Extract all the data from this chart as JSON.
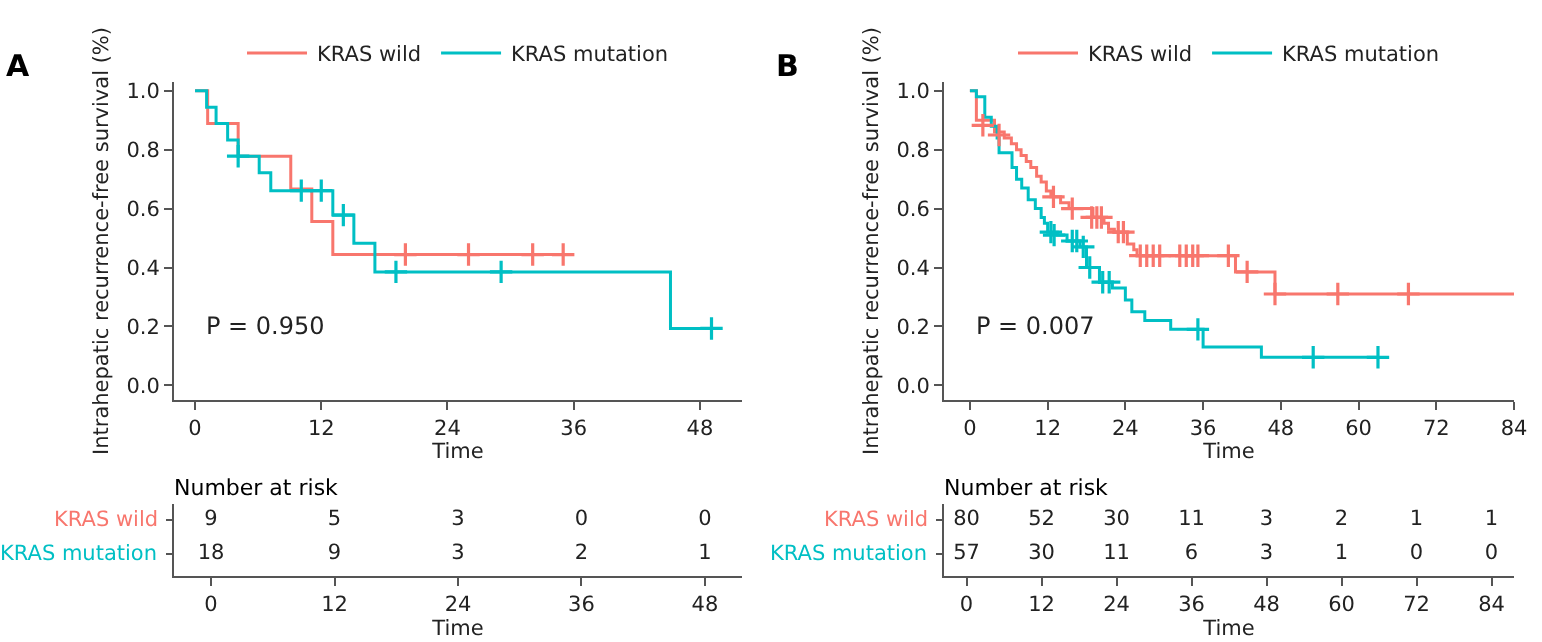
{
  "chart_data": [
    {
      "type": "step",
      "xlabel": "Time",
      "ylabel": "Intrahepatic recurrence-free survival (%)",
      "annotations": [
        "A",
        "P = 0.950"
      ],
      "legend": "top",
      "grid": false,
      "xlim": [
        -2,
        52
      ],
      "xticks": [
        0,
        12,
        24,
        36,
        48
      ],
      "ylim": [
        -0.05,
        1.03
      ],
      "yticks": [
        {
          "value": 0,
          "label": "0.0"
        },
        {
          "value": 0.2,
          "label": "0.2"
        },
        {
          "value": 0.4,
          "label": "0.4"
        },
        {
          "value": 0.6,
          "label": "0.6"
        },
        {
          "value": 0.8,
          "label": "0.8"
        },
        {
          "value": 1,
          "label": "1.0"
        }
      ],
      "series": [
        {
          "name": "KRAS wild",
          "color": "#f8766d",
          "type": "step",
          "x": [
            0,
            1.2,
            4.1,
            9.1,
            11.1,
            13.1,
            35
          ],
          "values": [
            1,
            0.889,
            0.778,
            0.667,
            0.556,
            0.444,
            0.444
          ]
        },
        {
          "name": "KRAS mutation",
          "color": "#00bfc4",
          "type": "step",
          "x": [
            0,
            1.1,
            2,
            3.1,
            4.1,
            6.1,
            7.2,
            13.1,
            15.1,
            17.1,
            45.2,
            49.1
          ],
          "values": [
            1,
            0.944,
            0.889,
            0.833,
            0.778,
            0.722,
            0.661,
            0.578,
            0.482,
            0.385,
            0.193,
            0.193
          ]
        },
        {
          "color": "#f8766d",
          "type": "scatter",
          "marker": "cross",
          "x": [
            20,
            26,
            32.1,
            35
          ],
          "values": [
            0.444,
            0.444,
            0.444,
            0.444
          ]
        },
        {
          "color": "#00bfc4",
          "type": "scatter",
          "marker": "cross",
          "x": [
            4.1,
            10.1,
            12,
            14.1,
            19.1,
            29.1,
            49.1
          ],
          "values": [
            0.778,
            0.661,
            0.661,
            0.578,
            0.385,
            0.385,
            0.193
          ]
        }
      ]
    },
    {
      "type": "step",
      "xlabel": "Time",
      "ylabel": "Intrahepatic recurrence-free survival (%)",
      "annotations": [
        "B",
        "P = 0.007"
      ],
      "legend": "top",
      "grid": false,
      "xlim": [
        -4,
        84
      ],
      "xticks": [
        0,
        12,
        24,
        36,
        48,
        60,
        72,
        84
      ],
      "ylim": [
        -0.05,
        1.03
      ],
      "yticks": [
        {
          "value": 0,
          "label": "0.0"
        },
        {
          "value": 0.2,
          "label": "0.2"
        },
        {
          "value": 0.4,
          "label": "0.4"
        },
        {
          "value": 0.6,
          "label": "0.6"
        },
        {
          "value": 0.8,
          "label": "0.8"
        },
        {
          "value": 1,
          "label": "1.0"
        }
      ],
      "series": [
        {
          "name": "KRAS wild",
          "color": "#f8766d",
          "type": "step",
          "x": [
            0,
            1,
            3.8,
            5.3,
            6.4,
            7.2,
            7.9,
            8.7,
            9.4,
            10.3,
            11,
            11.8,
            12.5,
            14,
            15.3,
            19,
            20.7,
            21.4,
            22.3,
            24.3,
            25.3,
            25.8,
            41,
            47.1,
            84
          ],
          "values": [
            1,
            0.9,
            0.86,
            0.84,
            0.82,
            0.8,
            0.78,
            0.76,
            0.74,
            0.71,
            0.69,
            0.66,
            0.64,
            0.62,
            0.6,
            0.57,
            0.55,
            0.53,
            0.52,
            0.48,
            0.46,
            0.44,
            0.385,
            0.31,
            0.31
          ]
        },
        {
          "name": "KRAS mutation",
          "color": "#00bfc4",
          "type": "step",
          "x": [
            0,
            1,
            2.3,
            3.3,
            4.2,
            4.5,
            6.5,
            7.2,
            8,
            9,
            10.1,
            11,
            11.5,
            12,
            13.5,
            15,
            17,
            18,
            20,
            22,
            24,
            25,
            27,
            31,
            36,
            45,
            63
          ],
          "values": [
            1,
            0.98,
            0.91,
            0.88,
            0.84,
            0.79,
            0.74,
            0.7,
            0.67,
            0.63,
            0.6,
            0.57,
            0.55,
            0.52,
            0.51,
            0.49,
            0.47,
            0.4,
            0.35,
            0.33,
            0.29,
            0.25,
            0.22,
            0.19,
            0.13,
            0.095,
            0.095
          ]
        },
        {
          "color": "#f8766d",
          "type": "scatter",
          "marker": "cross",
          "x": [
            2,
            4.5,
            12.9,
            15.8,
            18.8,
            19.6,
            20.3,
            22.9,
            23.7,
            26.3,
            27.3,
            28.3,
            29.3,
            32.4,
            33.4,
            34.4,
            35.2,
            39.9,
            42.8,
            47.1,
            56.8,
            67.7
          ],
          "values": [
            0.883,
            0.85,
            0.64,
            0.6,
            0.57,
            0.57,
            0.57,
            0.52,
            0.52,
            0.44,
            0.44,
            0.44,
            0.44,
            0.44,
            0.44,
            0.44,
            0.44,
            0.44,
            0.385,
            0.31,
            0.31,
            0.31
          ]
        },
        {
          "color": "#00bfc4",
          "type": "scatter",
          "marker": "cross",
          "x": [
            12.5,
            13,
            15.8,
            16.5,
            17.5,
            18.5,
            20.5,
            21.5,
            35.2,
            53,
            63
          ],
          "values": [
            0.52,
            0.51,
            0.49,
            0.49,
            0.47,
            0.4,
            0.35,
            0.35,
            0.19,
            0.095,
            0.095
          ]
        }
      ]
    },
    {
      "type": "heatmap",
      "title": "Number at risk",
      "xlabel": "Time",
      "data_labels": true,
      "categories": [
        "0",
        "12",
        "24",
        "36",
        "48"
      ],
      "y_categories": [
        "KRAS wild",
        "KRAS mutation"
      ],
      "colors": [
        "#f8766d",
        "#00bfc4"
      ],
      "cells": [
        [
          9,
          5,
          3,
          0,
          0
        ],
        [
          18,
          9,
          3,
          2,
          1
        ]
      ]
    },
    {
      "type": "heatmap",
      "title": "Number at risk",
      "xlabel": "Time",
      "data_labels": true,
      "categories": [
        "0",
        "12",
        "24",
        "36",
        "48",
        "60",
        "72",
        "84"
      ],
      "y_categories": [
        "KRAS wild",
        "KRAS mutation"
      ],
      "colors": [
        "#f8766d",
        "#00bfc4"
      ],
      "cells": [
        [
          80,
          52,
          30,
          11,
          3,
          2,
          1,
          1
        ],
        [
          57,
          30,
          11,
          6,
          3,
          1,
          0,
          0
        ]
      ]
    }
  ]
}
